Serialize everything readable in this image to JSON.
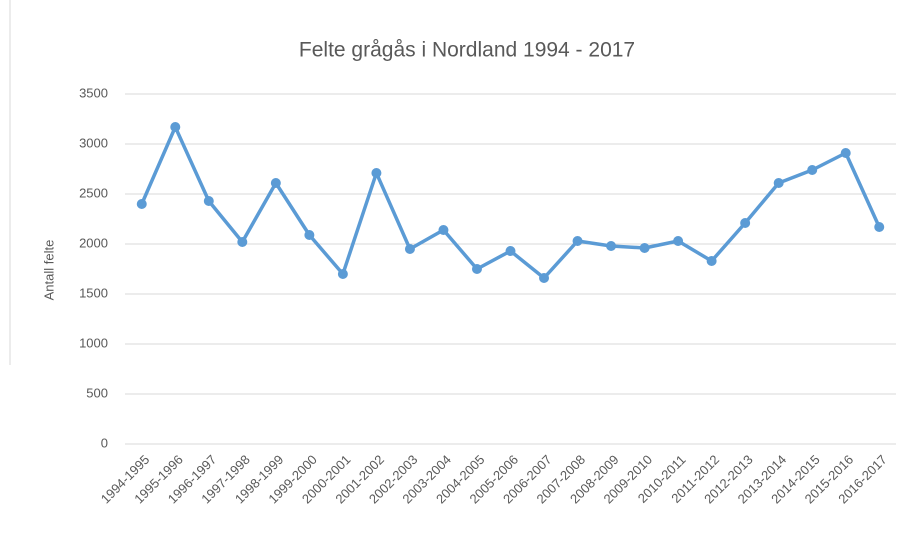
{
  "chart_data": {
    "type": "line",
    "title": "Felte grågås i Nordland 1994 - 2017",
    "y_label": "Antall felte",
    "categories": [
      "1994-1995",
      "1995-1996",
      "1996-1997",
      "1997-1998",
      "1998-1999",
      "1999-2000",
      "2000-2001",
      "2001-2002",
      "2002-2003",
      "2003-2004",
      "2004-2005",
      "2005-2006",
      "2006-2007",
      "2007-2008",
      "2008-2009",
      "2009-2010",
      "2010-2011",
      "2011-2012",
      "2012-2013",
      "2013-2014",
      "2014-2015",
      "2015-2016",
      "2016-2017"
    ],
    "series": [
      {
        "name": "Antall felte",
        "color": "#5b9bd5",
        "values": [
          2400,
          3170,
          2430,
          2020,
          2610,
          2090,
          1700,
          2710,
          1950,
          2140,
          1750,
          1930,
          1660,
          2030,
          1980,
          1960,
          2030,
          1830,
          2210,
          2610,
          2740,
          2910,
          2170
        ]
      }
    ],
    "ylim": [
      0,
      3500
    ],
    "yticks": [
      0,
      500,
      1000,
      1500,
      2000,
      2500,
      3000,
      3500
    ],
    "grid": true
  }
}
